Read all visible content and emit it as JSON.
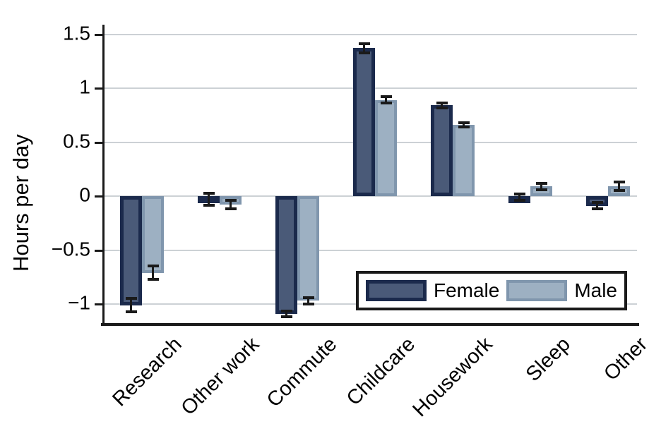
{
  "chart_data": {
    "type": "bar",
    "title": "",
    "xlabel": "",
    "ylabel": "Hours per day",
    "categories": [
      "Research",
      "Other work",
      "Commute",
      "Childcare",
      "Housework",
      "Sleep",
      "Other"
    ],
    "series": [
      {
        "name": "Female",
        "values": [
          -1.01,
          -0.03,
          -1.09,
          1.37,
          0.84,
          -0.01,
          -0.09
        ],
        "errors": [
          0.06,
          0.055,
          0.025,
          0.045,
          0.025,
          0.03,
          0.03
        ],
        "fill": "#4a5a78",
        "border": "#1b2a4c"
      },
      {
        "name": "Male",
        "values": [
          -0.71,
          -0.08,
          -0.97,
          0.89,
          0.66,
          0.09,
          0.09
        ],
        "errors": [
          0.06,
          0.04,
          0.03,
          0.03,
          0.02,
          0.03,
          0.04
        ],
        "fill": "#9db0c2",
        "border": "#8096ad"
      }
    ],
    "yticks": [
      {
        "value": 1.5,
        "label": "1.5"
      },
      {
        "value": 1,
        "label": "1"
      },
      {
        "value": 0.5,
        "label": "0.5"
      },
      {
        "value": 0,
        "label": "0"
      },
      {
        "value": -0.5,
        "label": "−0.5"
      },
      {
        "value": -1,
        "label": "−1"
      }
    ],
    "ylim": [
      -1.19,
      1.59
    ],
    "grid": true,
    "error_bars": true,
    "legend": {
      "position": "inside-bottom-right",
      "entries": [
        "Female",
        "Male"
      ]
    },
    "colors": {
      "grid": "#ccd1d5",
      "axis": "#1a1a1a",
      "error": "#1a1a1a",
      "text": "#000000",
      "background": "#ffffff"
    }
  }
}
